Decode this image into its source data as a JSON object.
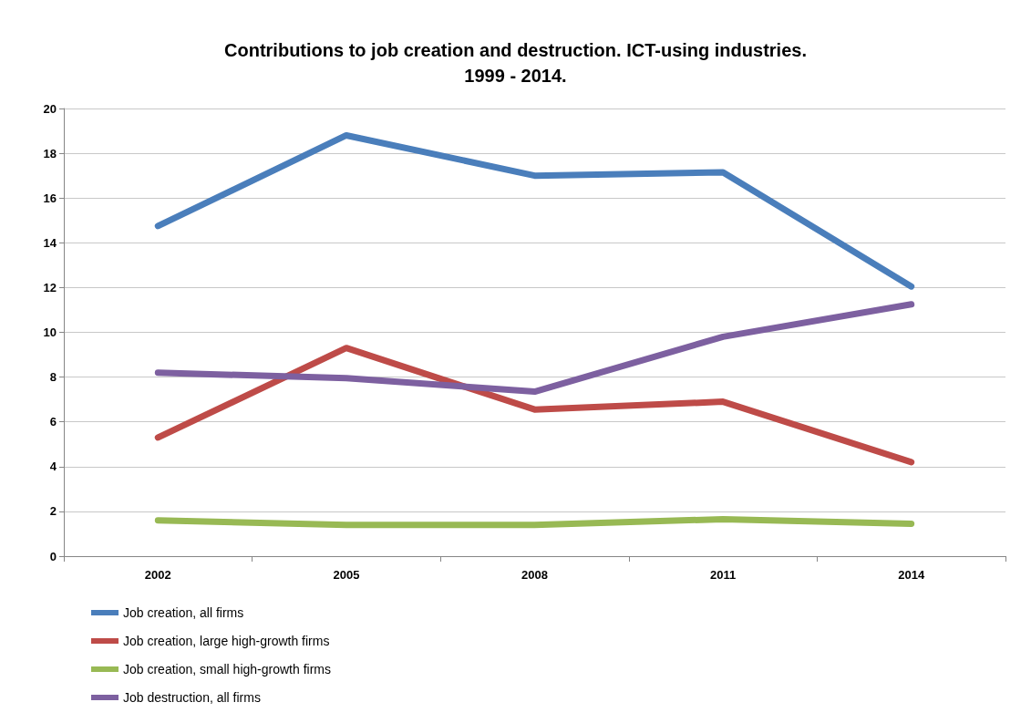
{
  "chart_data": {
    "type": "line",
    "title": "Contributions to job creation and destruction. ICT-using industries.\n1999 - 2014.",
    "categories": [
      "2002",
      "2005",
      "2008",
      "2011",
      "2014"
    ],
    "series": [
      {
        "name": "Job creation, all firms",
        "color": "#4a7ebb",
        "values": [
          14.75,
          18.8,
          17.0,
          17.15,
          12.05
        ]
      },
      {
        "name": "Job creation, large high-growth firms",
        "color": "#be4b48",
        "values": [
          5.3,
          9.3,
          6.55,
          6.9,
          4.2
        ]
      },
      {
        "name": "Job creation, small high-growth firms",
        "color": "#98b954",
        "values": [
          1.6,
          1.4,
          1.4,
          1.65,
          1.45
        ]
      },
      {
        "name": "Job destruction, all firms",
        "color": "#7d60a0",
        "values": [
          8.2,
          7.95,
          7.35,
          9.8,
          11.25
        ]
      }
    ],
    "ylim": [
      0,
      20
    ],
    "yticks": [
      0,
      2,
      4,
      6,
      8,
      10,
      12,
      14,
      16,
      18,
      20
    ],
    "grid": "y",
    "legend": "bottom left",
    "marker": "none",
    "line_style": "solid"
  }
}
